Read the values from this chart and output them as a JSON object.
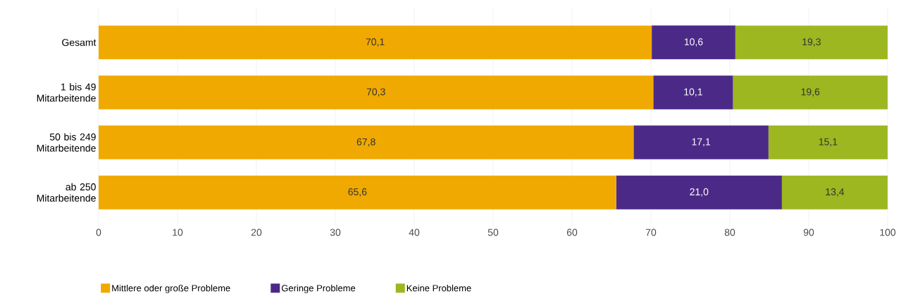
{
  "chart_data": {
    "type": "bar",
    "orientation": "horizontal",
    "stacked": true,
    "categories": [
      "Gesamt",
      "1 bis 49 Mitarbeitende",
      "50 bis 249 Mitarbeitende",
      "ab 250 Mitarbeitende"
    ],
    "series": [
      {
        "name": "Mittlere oder große Probleme",
        "color": "#f0a900",
        "values": [
          70.1,
          70.3,
          67.8,
          65.6
        ],
        "value_labels": [
          "70,1",
          "70,3",
          "67,8",
          "65,6"
        ]
      },
      {
        "name": "Geringe Probleme",
        "color": "#4b2a87",
        "values": [
          10.6,
          10.1,
          17.1,
          21.0
        ],
        "value_labels": [
          "10,6",
          "10,1",
          "17,1",
          "21,0"
        ]
      },
      {
        "name": "Keine Probleme",
        "color": "#9cb720",
        "values": [
          19.3,
          19.6,
          15.1,
          13.4
        ],
        "value_labels": [
          "19,3",
          "19,6",
          "15,1",
          "13,4"
        ]
      }
    ],
    "xlim": [
      0,
      100
    ],
    "xticks": [
      0,
      10,
      20,
      30,
      40,
      50,
      60,
      70,
      80,
      90,
      100
    ],
    "grid": "x",
    "legend": "bottom"
  }
}
